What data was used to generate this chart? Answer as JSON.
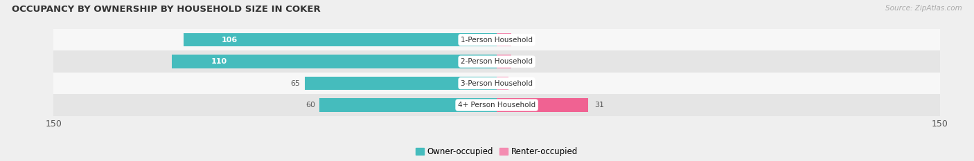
{
  "title": "OCCUPANCY BY OWNERSHIP BY HOUSEHOLD SIZE IN COKER",
  "source": "Source: ZipAtlas.com",
  "categories": [
    "1-Person Household",
    "2-Person Household",
    "3-Person Household",
    "4+ Person Household"
  ],
  "owner_values": [
    106,
    110,
    65,
    60
  ],
  "renter_values": [
    5,
    5,
    4,
    31
  ],
  "owner_color": "#45bcbd",
  "renter_color": "#f48cb1",
  "renter_color_strong": "#f06292",
  "owner_label": "Owner-occupied",
  "renter_label": "Renter-occupied",
  "axis_max": 150,
  "bar_height": 0.62,
  "background_color": "#efefef",
  "row_bg_light": "#f7f7f7",
  "row_bg_dark": "#e5e5e5",
  "title_fontsize": 9.5,
  "label_fontsize": 8,
  "tick_fontsize": 9,
  "source_fontsize": 7.5
}
